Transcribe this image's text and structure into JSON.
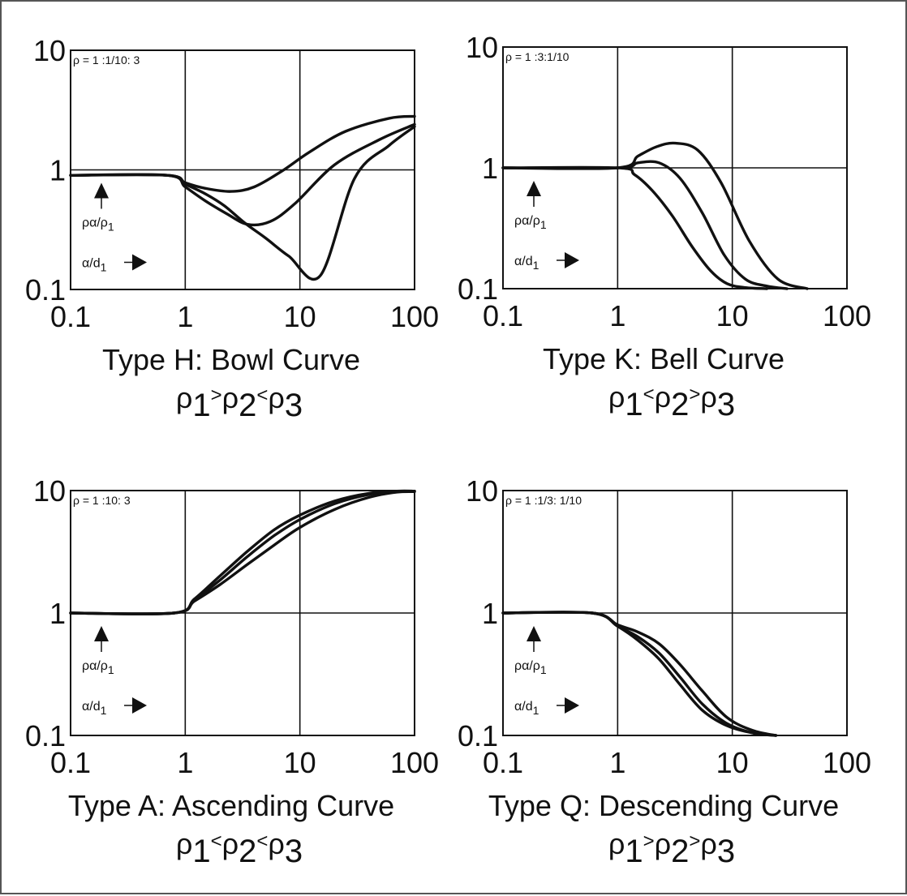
{
  "chart_data": [
    {
      "type": "line",
      "title": "Type H: Bowl Curve",
      "subtitle": "ρ1 >ρ2<ρ3",
      "annotation": "ρ = 1 :1/10: 3",
      "axis_note_y": "ρα/ρ1",
      "axis_note_x": "α/d1",
      "x_scale": "log",
      "y_scale": "log",
      "xlim": [
        0.1,
        100
      ],
      "ylim": [
        0.1,
        10
      ],
      "x_ticks": [
        "0.1",
        "1",
        "10",
        "100"
      ],
      "y_ticks": [
        "10",
        "1",
        "0.1"
      ],
      "grid": true,
      "series": [
        {
          "x": [
            0.1,
            0.7,
            1.0,
            1.5,
            2.2,
            3.3,
            5,
            8,
            15,
            30,
            60,
            100
          ],
          "y": [
            0.9,
            0.9,
            0.76,
            0.63,
            0.5,
            0.36,
            0.27,
            0.19,
            0.13,
            0.85,
            1.6,
            2.3
          ]
        },
        {
          "x": [
            0.1,
            0.7,
            1.0,
            1.5,
            2.3,
            3.5,
            5.5,
            9,
            20,
            50,
            100
          ],
          "y": [
            0.9,
            0.9,
            0.72,
            0.55,
            0.43,
            0.35,
            0.37,
            0.52,
            1.1,
            1.8,
            2.4
          ]
        },
        {
          "x": [
            0.1,
            0.7,
            1.0,
            1.5,
            2.5,
            4,
            7,
            12,
            25,
            60,
            100
          ],
          "y": [
            0.9,
            0.9,
            0.78,
            0.7,
            0.66,
            0.72,
            0.98,
            1.4,
            2.1,
            2.7,
            2.8
          ]
        }
      ]
    },
    {
      "type": "line",
      "title": "Type K: Bell Curve",
      "subtitle": "ρ1 <ρ2>ρ3",
      "annotation": "ρ = 1 :3:1/10",
      "axis_note_y": "ρα/ρ1",
      "axis_note_x": "α/d1",
      "x_scale": "log",
      "y_scale": "log",
      "xlim": [
        0.1,
        100
      ],
      "ylim": [
        0.1,
        10
      ],
      "x_ticks": [
        "0.1",
        "1",
        "10",
        "100"
      ],
      "y_ticks": [
        "10",
        "1",
        "0.1"
      ],
      "grid": true,
      "series": [
        {
          "x": [
            0.1,
            1.0,
            1.5,
            2.2,
            3.2,
            5,
            8,
            14,
            25,
            45
          ],
          "y": [
            1.0,
            1.0,
            1.25,
            1.5,
            1.6,
            1.4,
            0.75,
            0.25,
            0.12,
            0.1
          ]
        },
        {
          "x": [
            0.1,
            1.0,
            1.5,
            2.3,
            3.5,
            5.5,
            8.5,
            13,
            20,
            30
          ],
          "y": [
            1.0,
            1.0,
            1.1,
            1.1,
            0.82,
            0.42,
            0.19,
            0.12,
            0.105,
            0.1
          ]
        },
        {
          "x": [
            0.1,
            1.0,
            1.4,
            2.0,
            3.0,
            4.5,
            6.5,
            9,
            13,
            20
          ],
          "y": [
            1.0,
            1.0,
            0.88,
            0.65,
            0.4,
            0.22,
            0.14,
            0.11,
            0.102,
            0.1
          ]
        }
      ]
    },
    {
      "type": "line",
      "title": "Type A: Ascending Curve",
      "subtitle": "ρ1 <ρ2<ρ3",
      "annotation": "ρ = 1 :10: 3",
      "axis_note_y": "ρα/ρ1",
      "axis_note_x": "α/d1",
      "x_scale": "log",
      "y_scale": "log",
      "xlim": [
        0.1,
        100
      ],
      "ylim": [
        0.1,
        10
      ],
      "x_ticks": [
        "0.1",
        "1",
        "10",
        "100"
      ],
      "y_ticks": [
        "10",
        "1",
        "0.1"
      ],
      "grid": true,
      "series": [
        {
          "x": [
            0.1,
            0.8,
            1.2,
            2,
            3.5,
            6,
            10,
            20,
            40,
            70,
            100
          ],
          "y": [
            1.0,
            1.0,
            1.25,
            1.7,
            2.5,
            3.6,
            5.0,
            7.0,
            8.8,
            9.7,
            9.8
          ]
        },
        {
          "x": [
            0.1,
            0.8,
            1.2,
            2,
            3.5,
            6,
            10,
            20,
            40,
            70,
            100
          ],
          "y": [
            1.0,
            1.0,
            1.28,
            1.85,
            2.9,
            4.3,
            5.8,
            7.8,
            9.3,
            9.8,
            9.9
          ]
        },
        {
          "x": [
            0.1,
            0.8,
            1.2,
            2,
            3.5,
            6,
            10,
            20,
            40,
            70,
            100
          ],
          "y": [
            1.0,
            1.0,
            1.3,
            2.0,
            3.2,
            4.8,
            6.3,
            8.2,
            9.5,
            9.9,
            9.9
          ]
        }
      ]
    },
    {
      "type": "line",
      "title": "Type Q: Descending Curve",
      "subtitle": "ρ1 >ρ2>ρ3",
      "annotation": "ρ = 1 :1/3: 1/10",
      "axis_note_y": "ρα/ρ1",
      "axis_note_x": "α/d1",
      "x_scale": "log",
      "y_scale": "log",
      "xlim": [
        0.1,
        100
      ],
      "ylim": [
        0.1,
        10
      ],
      "x_ticks": [
        "0.1",
        "1",
        "10",
        "100"
      ],
      "y_ticks": [
        "10",
        "1",
        "0.1"
      ],
      "grid": true,
      "series": [
        {
          "x": [
            0.1,
            0.6,
            1.0,
            1.5,
            2.3,
            3.5,
            5.5,
            9,
            15,
            24
          ],
          "y": [
            1.0,
            1.0,
            0.78,
            0.6,
            0.42,
            0.26,
            0.16,
            0.12,
            0.105,
            0.1
          ]
        },
        {
          "x": [
            0.1,
            0.6,
            1.0,
            1.5,
            2.3,
            3.5,
            5.5,
            9,
            15,
            24
          ],
          "y": [
            1.0,
            1.0,
            0.78,
            0.64,
            0.47,
            0.3,
            0.18,
            0.125,
            0.105,
            0.1
          ]
        },
        {
          "x": [
            0.1,
            0.6,
            1.0,
            1.5,
            2.3,
            3.5,
            5.5,
            9,
            15,
            24
          ],
          "y": [
            1.0,
            1.0,
            0.8,
            0.7,
            0.56,
            0.38,
            0.23,
            0.14,
            0.11,
            0.1
          ]
        }
      ]
    }
  ]
}
